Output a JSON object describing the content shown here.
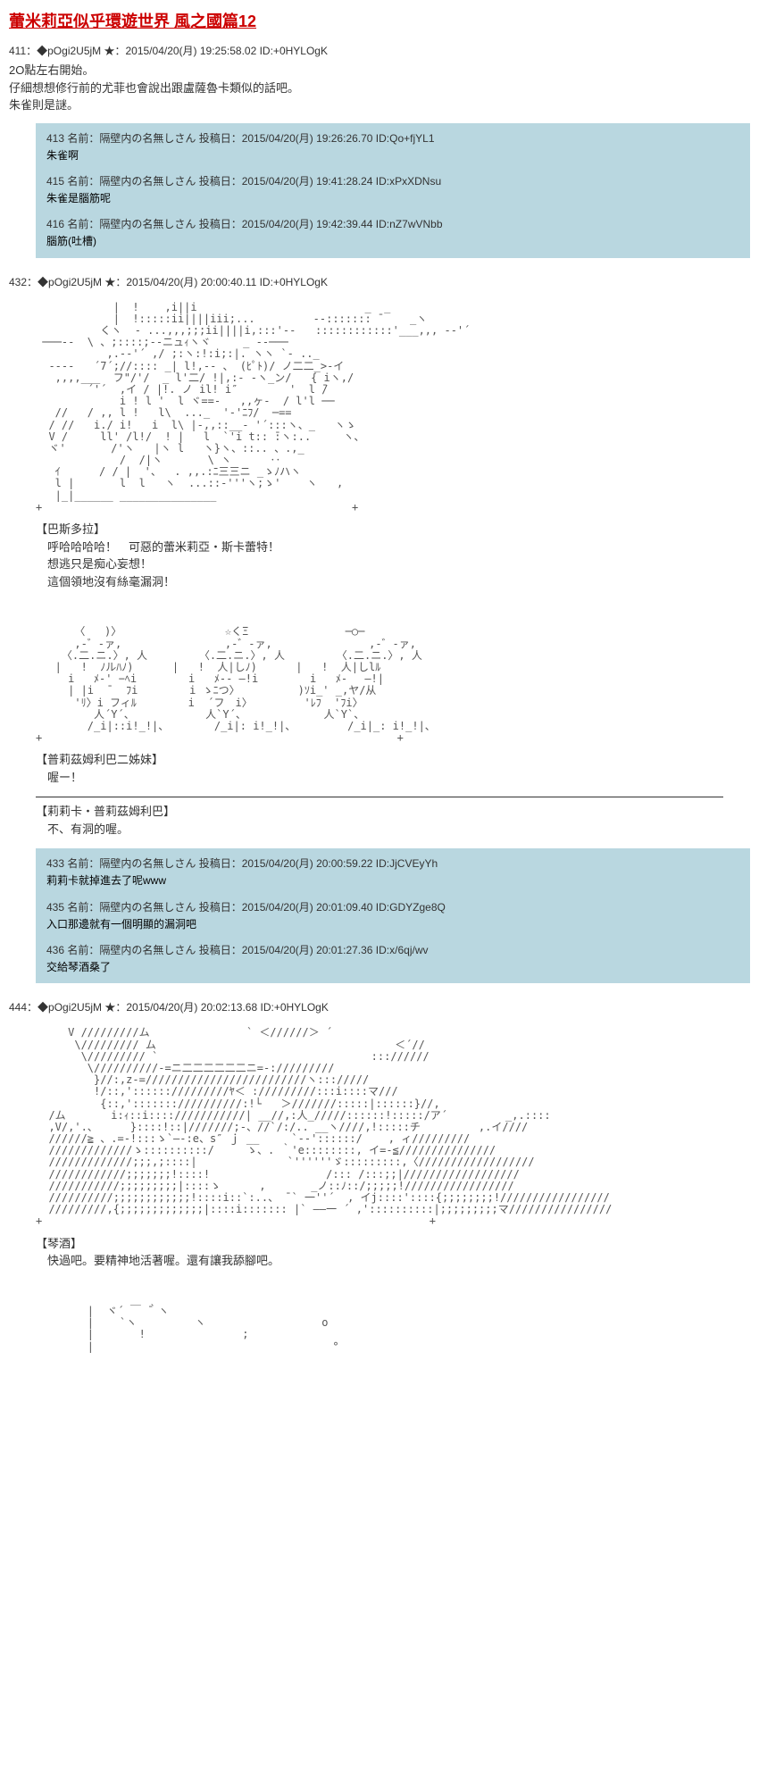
{
  "title": "蕾米莉亞似乎環遊世界 風之國篇12",
  "post411": {
    "header": "411：◆pOgi2U5jM ★：2015/04/20(月) 19:25:58.02 ID:+0HYLOgK",
    "line1": "2O點左右開始。",
    "line2": "仔細想想修行前的尤菲也會說出跟盧薩魯卡類似的話吧。",
    "line3": "朱雀則是謎。"
  },
  "replies1": [
    {
      "header": "413 名前：隔壁内の名無しさん 投稿日：2015/04/20(月) 19:26:26.70 ID:Qo+fjYL1",
      "body": "朱雀啊"
    },
    {
      "header": "415 名前：隔壁内の名無しさん 投稿日：2015/04/20(月) 19:41:28.24 ID:xPxXDNsu",
      "body": "朱雀是腦筋呢"
    },
    {
      "header": "416 名前：隔壁内の名無しさん 投稿日：2015/04/20(月) 19:42:39.44 ID:nZ7wVNbb",
      "body": "腦筋(吐槽)"
    }
  ],
  "post432_header": "432：◆pOgi2U5jM ★：2015/04/20(月) 20:00:40.11 ID:+0HYLOgK",
  "caption1": {
    "name": "【巴斯多拉】",
    "line1": "　呼哈哈哈哈！　可惡的蕾米莉亞・斯卡蕾特！",
    "line2": "　想逃只是痴心妄想！",
    "line3": "　這個領地沒有絲毫漏洞！"
  },
  "caption2": {
    "name": "【普莉茲姆利巴二姊妹】",
    "line1": "　喔ー！"
  },
  "caption3": {
    "name": "【莉莉卡・普莉茲姆利巴】",
    "line1": "　不、有洞的喔。"
  },
  "replies2": [
    {
      "header": "433 名前：隔壁内の名無しさん 投稿日：2015/04/20(月) 20:00:59.22 ID:JjCVEyYh",
      "body": "莉莉卡就掉進去了呢www"
    },
    {
      "header": "435 名前：隔壁内の名無しさん 投稿日：2015/04/20(月) 20:01:09.40 ID:GDYZge8Q",
      "body": "入口那邊就有一個明顯的漏洞吧"
    },
    {
      "header": "436 名前：隔壁内の名無しさん 投稿日：2015/04/20(月) 20:01:27.36 ID:x/6qj/wv",
      "body": "交給琴酒桑了"
    }
  ],
  "post444_header": "444：◆pOgi2U5jM ★：2015/04/20(月) 20:02:13.68 ID:+0HYLOgK",
  "caption4": {
    "name": "【琴酒】",
    "line1": "　快過吧。要精神地活著喔。還有讓我舔腳吧。"
  }
}
